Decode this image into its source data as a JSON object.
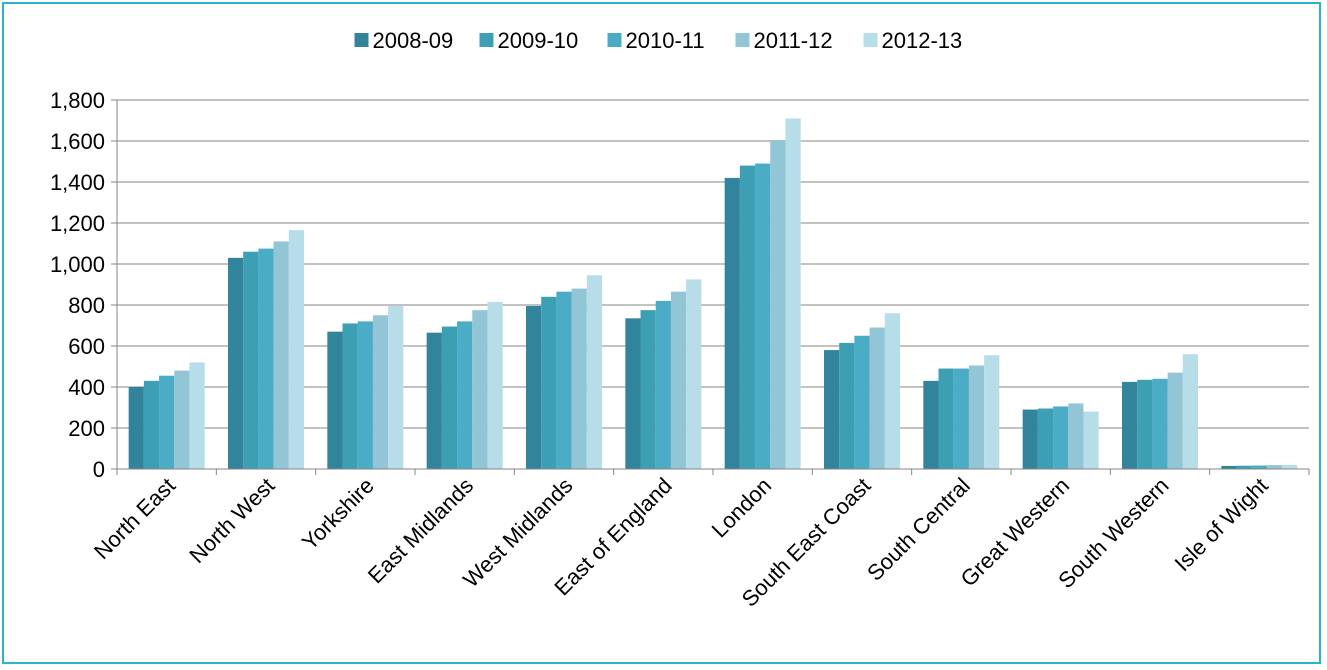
{
  "chart_data": {
    "type": "bar",
    "title": "",
    "xlabel": "",
    "ylabel": "",
    "ylim": [
      0,
      1800
    ],
    "yticks": [
      "0",
      "200",
      "400",
      "600",
      "800",
      "1,000",
      "1,200",
      "1,400",
      "1,600",
      "1,800"
    ],
    "ytick_values": [
      0,
      200,
      400,
      600,
      800,
      1000,
      1200,
      1400,
      1600,
      1800
    ],
    "grid": true,
    "legend_position": "top",
    "categories": [
      "North East",
      "North West",
      "Yorkshire",
      "East Midlands",
      "West Midlands",
      "East of England",
      "London",
      "South East Coast",
      "South Central",
      "Great Western",
      "South Western",
      "Isle of Wight"
    ],
    "series": [
      {
        "name": "2008-09",
        "color": "#31849b",
        "values": [
          400,
          1030,
          670,
          665,
          795,
          735,
          1420,
          580,
          430,
          290,
          425,
          15
        ]
      },
      {
        "name": "2009-10",
        "color": "#3d9fb4",
        "values": [
          430,
          1060,
          710,
          695,
          840,
          775,
          1480,
          615,
          490,
          295,
          435,
          16
        ]
      },
      {
        "name": "2010-11",
        "color": "#4bacc6",
        "values": [
          455,
          1075,
          720,
          720,
          865,
          820,
          1490,
          650,
          490,
          305,
          440,
          17
        ]
      },
      {
        "name": "2011-12",
        "color": "#92c5d6",
        "values": [
          480,
          1110,
          750,
          775,
          880,
          865,
          1605,
          690,
          505,
          320,
          470,
          19
        ]
      },
      {
        "name": "2012-13",
        "color": "#b7dde8",
        "values": [
          520,
          1165,
          795,
          815,
          945,
          925,
          1710,
          760,
          555,
          280,
          560,
          20
        ]
      }
    ]
  }
}
